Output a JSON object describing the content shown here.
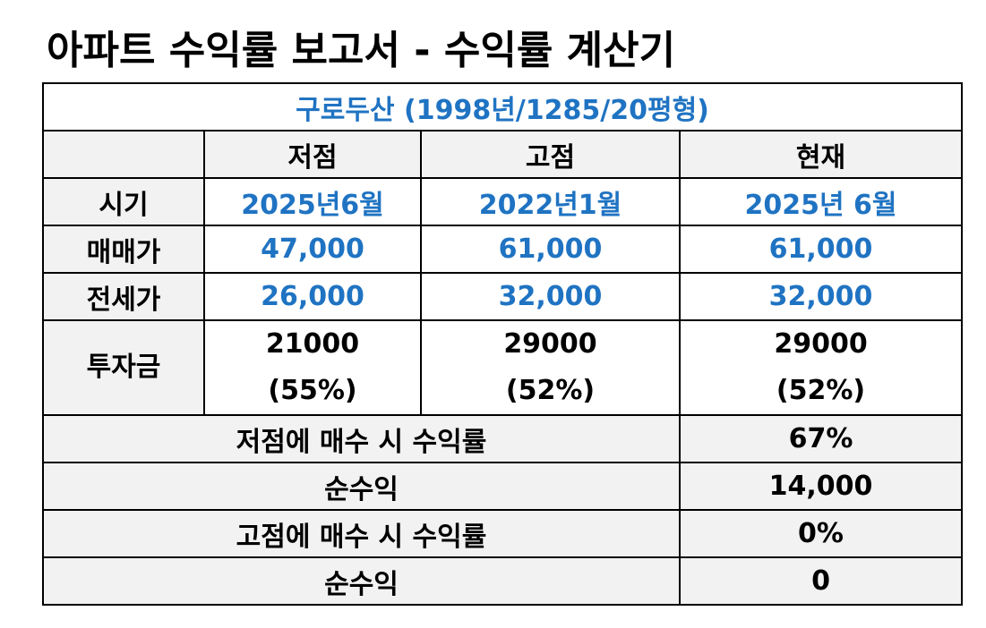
{
  "title": "아파트 수익률 보고서 - 수익률 계산기",
  "subtitle": "구로두산 (1998년/1285/20평형)",
  "columns": [
    "",
    "저점",
    "고점",
    "현재"
  ],
  "rows": [
    {
      "label": "시기",
      "values": [
        "2025년6월",
        "2022년1월",
        "2025년 6월"
      ]
    },
    {
      "label": "매매가",
      "values": [
        "47,000",
        "61,000",
        "61,000"
      ]
    },
    {
      "label": "전세가",
      "values": [
        "26,000",
        "32,000",
        "32,000"
      ]
    }
  ],
  "investment": {
    "label": "투자금",
    "values": [
      {
        "amount": "21000",
        "ratio": "(55%)"
      },
      {
        "amount": "29000",
        "ratio": "(52%)"
      },
      {
        "amount": "29000",
        "ratio": "(52%)"
      }
    ]
  },
  "results": [
    {
      "label": "저점에 매수 시 수익률",
      "value": "67%"
    },
    {
      "label": "순수익",
      "value": "14,000"
    },
    {
      "label": "고점에 매수 시 수익률",
      "value": "0%"
    },
    {
      "label": "순수익",
      "value": "0"
    }
  ],
  "colors": {
    "accent_text": "#1f73c2",
    "header_background": "#f2f2f2",
    "border": "#000000"
  }
}
